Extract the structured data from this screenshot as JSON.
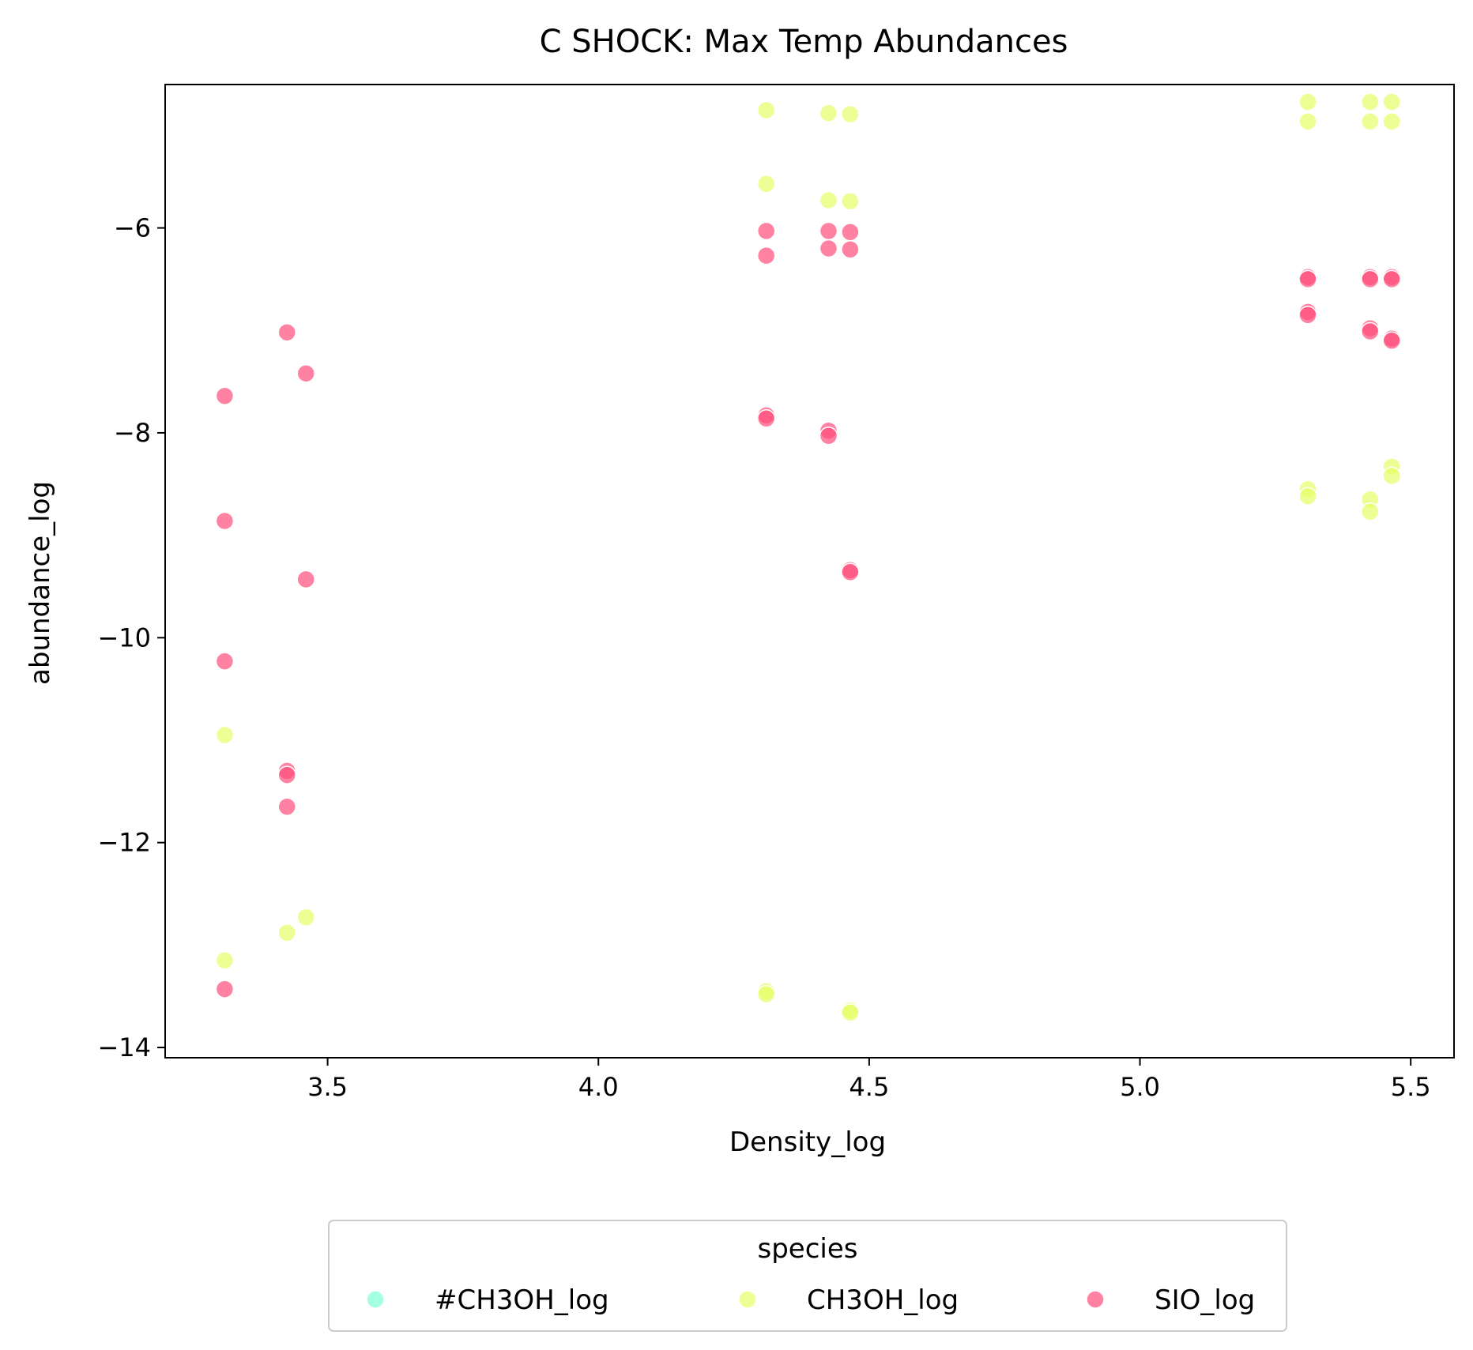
{
  "chart_data": {
    "type": "scatter",
    "title": "C SHOCK: Max Temp Abundances",
    "xlabel": "Density_log",
    "ylabel": "abundance_log",
    "xlim": [
      3.2,
      5.58
    ],
    "ylim": [
      -14.1,
      -4.6
    ],
    "xticks": [
      3.5,
      4.0,
      4.5,
      5.0,
      5.5
    ],
    "xtick_labels": [
      "3.5",
      "4.0",
      "4.5",
      "5.0",
      "5.5"
    ],
    "yticks": [
      -14,
      -12,
      -10,
      -8,
      -6
    ],
    "ytick_labels": [
      "−14",
      "−12",
      "−10",
      "−8",
      "−6"
    ],
    "grid": false,
    "legend": {
      "title": "species",
      "placement": "below plot, centered",
      "columns": 3
    },
    "series": [
      {
        "name": "#CH3OH_log",
        "color": "#7FFFD4",
        "points": []
      },
      {
        "name": "CH3OH_log",
        "color": "#E6FF66",
        "points": [
          [
            3.31,
            -10.95
          ],
          [
            3.31,
            -13.15
          ],
          [
            3.425,
            -12.88
          ],
          [
            3.46,
            -12.73
          ],
          [
            4.31,
            -4.85
          ],
          [
            4.31,
            -5.57
          ],
          [
            4.31,
            -13.45
          ],
          [
            4.31,
            -13.48
          ],
          [
            4.425,
            -4.88
          ],
          [
            4.425,
            -5.73
          ],
          [
            4.465,
            -4.89
          ],
          [
            4.465,
            -5.74
          ],
          [
            4.465,
            -13.64
          ],
          [
            4.465,
            -13.66
          ],
          [
            5.31,
            -4.77
          ],
          [
            5.31,
            -4.96
          ],
          [
            5.31,
            -8.55
          ],
          [
            5.31,
            -8.62
          ],
          [
            5.425,
            -4.77
          ],
          [
            5.425,
            -4.96
          ],
          [
            5.425,
            -8.65
          ],
          [
            5.425,
            -8.77
          ],
          [
            5.465,
            -4.77
          ],
          [
            5.465,
            -4.96
          ],
          [
            5.465,
            -8.33
          ],
          [
            5.465,
            -8.42
          ]
        ]
      },
      {
        "name": "SIO_log",
        "color": "#FF4D7A",
        "points": [
          [
            3.31,
            -7.64
          ],
          [
            3.31,
            -8.86
          ],
          [
            3.31,
            -10.23
          ],
          [
            3.31,
            -13.43
          ],
          [
            3.425,
            -7.02
          ],
          [
            3.425,
            -11.3
          ],
          [
            3.425,
            -11.34
          ],
          [
            3.425,
            -11.65
          ],
          [
            3.46,
            -7.42
          ],
          [
            3.46,
            -9.43
          ],
          [
            4.31,
            -6.03
          ],
          [
            4.31,
            -6.27
          ],
          [
            4.31,
            -7.83
          ],
          [
            4.31,
            -7.86
          ],
          [
            4.425,
            -6.03
          ],
          [
            4.425,
            -6.2
          ],
          [
            4.425,
            -7.98
          ],
          [
            4.425,
            -8.03
          ],
          [
            4.465,
            -6.04
          ],
          [
            4.465,
            -6.21
          ],
          [
            4.465,
            -9.34
          ],
          [
            4.465,
            -9.36
          ],
          [
            5.31,
            -6.48
          ],
          [
            5.31,
            -6.5
          ],
          [
            5.31,
            -6.82
          ],
          [
            5.31,
            -6.85
          ],
          [
            5.425,
            -6.48
          ],
          [
            5.425,
            -6.5
          ],
          [
            5.425,
            -6.98
          ],
          [
            5.425,
            -7.01
          ],
          [
            5.465,
            -6.48
          ],
          [
            5.465,
            -6.5
          ],
          [
            5.465,
            -7.08
          ],
          [
            5.465,
            -7.1
          ]
        ]
      }
    ]
  }
}
